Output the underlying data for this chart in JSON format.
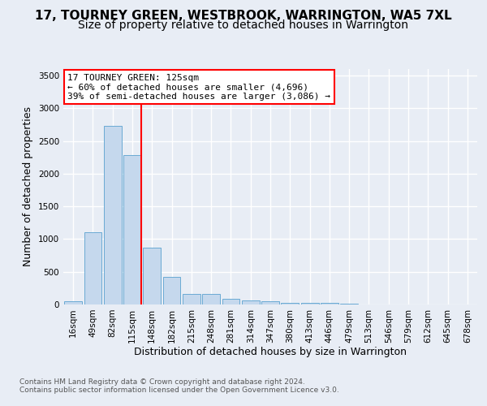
{
  "title": "17, TOURNEY GREEN, WESTBROOK, WARRINGTON, WA5 7XL",
  "subtitle": "Size of property relative to detached houses in Warrington",
  "xlabel": "Distribution of detached houses by size in Warrington",
  "ylabel": "Number of detached properties",
  "categories": [
    "16sqm",
    "49sqm",
    "82sqm",
    "115sqm",
    "148sqm",
    "182sqm",
    "215sqm",
    "248sqm",
    "281sqm",
    "314sqm",
    "347sqm",
    "380sqm",
    "413sqm",
    "446sqm",
    "479sqm",
    "513sqm",
    "546sqm",
    "579sqm",
    "612sqm",
    "645sqm",
    "678sqm"
  ],
  "values": [
    55,
    1100,
    2730,
    2290,
    870,
    425,
    165,
    165,
    90,
    60,
    55,
    30,
    30,
    25,
    10,
    0,
    0,
    0,
    0,
    0,
    0
  ],
  "bar_color": "#c5d8ed",
  "bar_edge_color": "#6aaad4",
  "red_line_index": 3,
  "annotation_title": "17 TOURNEY GREEN: 125sqm",
  "annotation_line1": "← 60% of detached houses are smaller (4,696)",
  "annotation_line2": "39% of semi-detached houses are larger (3,086) →",
  "ylim": [
    0,
    3600
  ],
  "yticks": [
    0,
    500,
    1000,
    1500,
    2000,
    2500,
    3000,
    3500
  ],
  "footer1": "Contains HM Land Registry data © Crown copyright and database right 2024.",
  "footer2": "Contains public sector information licensed under the Open Government Licence v3.0.",
  "bg_color": "#e8edf5",
  "grid_color": "#ffffff",
  "title_fontsize": 11,
  "subtitle_fontsize": 10,
  "xlabel_fontsize": 9,
  "ylabel_fontsize": 9,
  "tick_fontsize": 7.5,
  "footer_fontsize": 6.5,
  "annotation_fontsize": 8
}
